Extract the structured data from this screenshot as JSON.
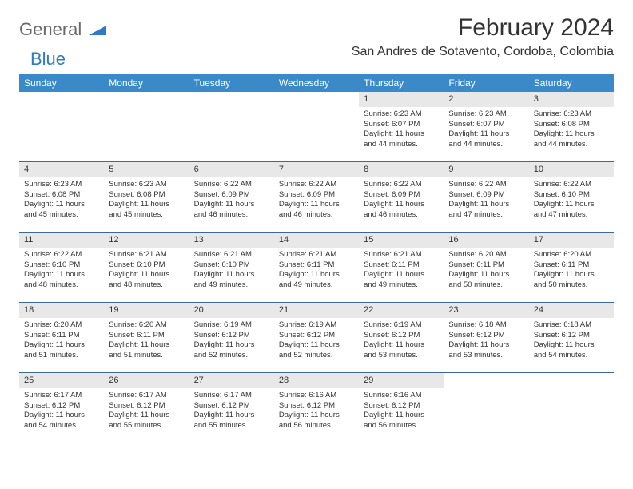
{
  "logo": {
    "part1": "General",
    "part2": "Blue"
  },
  "title": "February 2024",
  "location": "San Andres de Sotavento, Cordoba, Colombia",
  "header_bg": "#3a8ac9",
  "day_bg": "#e8e8e8",
  "border_color": "#3a6a9a",
  "weekdays": [
    "Sunday",
    "Monday",
    "Tuesday",
    "Wednesday",
    "Thursday",
    "Friday",
    "Saturday"
  ],
  "grid": [
    [
      null,
      null,
      null,
      null,
      {
        "d": "1",
        "sr": "Sunrise: 6:23 AM",
        "ss": "Sunset: 6:07 PM",
        "dl1": "Daylight: 11 hours",
        "dl2": "and 44 minutes."
      },
      {
        "d": "2",
        "sr": "Sunrise: 6:23 AM",
        "ss": "Sunset: 6:07 PM",
        "dl1": "Daylight: 11 hours",
        "dl2": "and 44 minutes."
      },
      {
        "d": "3",
        "sr": "Sunrise: 6:23 AM",
        "ss": "Sunset: 6:08 PM",
        "dl1": "Daylight: 11 hours",
        "dl2": "and 44 minutes."
      }
    ],
    [
      {
        "d": "4",
        "sr": "Sunrise: 6:23 AM",
        "ss": "Sunset: 6:08 PM",
        "dl1": "Daylight: 11 hours",
        "dl2": "and 45 minutes."
      },
      {
        "d": "5",
        "sr": "Sunrise: 6:23 AM",
        "ss": "Sunset: 6:08 PM",
        "dl1": "Daylight: 11 hours",
        "dl2": "and 45 minutes."
      },
      {
        "d": "6",
        "sr": "Sunrise: 6:22 AM",
        "ss": "Sunset: 6:09 PM",
        "dl1": "Daylight: 11 hours",
        "dl2": "and 46 minutes."
      },
      {
        "d": "7",
        "sr": "Sunrise: 6:22 AM",
        "ss": "Sunset: 6:09 PM",
        "dl1": "Daylight: 11 hours",
        "dl2": "and 46 minutes."
      },
      {
        "d": "8",
        "sr": "Sunrise: 6:22 AM",
        "ss": "Sunset: 6:09 PM",
        "dl1": "Daylight: 11 hours",
        "dl2": "and 46 minutes."
      },
      {
        "d": "9",
        "sr": "Sunrise: 6:22 AM",
        "ss": "Sunset: 6:09 PM",
        "dl1": "Daylight: 11 hours",
        "dl2": "and 47 minutes."
      },
      {
        "d": "10",
        "sr": "Sunrise: 6:22 AM",
        "ss": "Sunset: 6:10 PM",
        "dl1": "Daylight: 11 hours",
        "dl2": "and 47 minutes."
      }
    ],
    [
      {
        "d": "11",
        "sr": "Sunrise: 6:22 AM",
        "ss": "Sunset: 6:10 PM",
        "dl1": "Daylight: 11 hours",
        "dl2": "and 48 minutes."
      },
      {
        "d": "12",
        "sr": "Sunrise: 6:21 AM",
        "ss": "Sunset: 6:10 PM",
        "dl1": "Daylight: 11 hours",
        "dl2": "and 48 minutes."
      },
      {
        "d": "13",
        "sr": "Sunrise: 6:21 AM",
        "ss": "Sunset: 6:10 PM",
        "dl1": "Daylight: 11 hours",
        "dl2": "and 49 minutes."
      },
      {
        "d": "14",
        "sr": "Sunrise: 6:21 AM",
        "ss": "Sunset: 6:11 PM",
        "dl1": "Daylight: 11 hours",
        "dl2": "and 49 minutes."
      },
      {
        "d": "15",
        "sr": "Sunrise: 6:21 AM",
        "ss": "Sunset: 6:11 PM",
        "dl1": "Daylight: 11 hours",
        "dl2": "and 49 minutes."
      },
      {
        "d": "16",
        "sr": "Sunrise: 6:20 AM",
        "ss": "Sunset: 6:11 PM",
        "dl1": "Daylight: 11 hours",
        "dl2": "and 50 minutes."
      },
      {
        "d": "17",
        "sr": "Sunrise: 6:20 AM",
        "ss": "Sunset: 6:11 PM",
        "dl1": "Daylight: 11 hours",
        "dl2": "and 50 minutes."
      }
    ],
    [
      {
        "d": "18",
        "sr": "Sunrise: 6:20 AM",
        "ss": "Sunset: 6:11 PM",
        "dl1": "Daylight: 11 hours",
        "dl2": "and 51 minutes."
      },
      {
        "d": "19",
        "sr": "Sunrise: 6:20 AM",
        "ss": "Sunset: 6:11 PM",
        "dl1": "Daylight: 11 hours",
        "dl2": "and 51 minutes."
      },
      {
        "d": "20",
        "sr": "Sunrise: 6:19 AM",
        "ss": "Sunset: 6:12 PM",
        "dl1": "Daylight: 11 hours",
        "dl2": "and 52 minutes."
      },
      {
        "d": "21",
        "sr": "Sunrise: 6:19 AM",
        "ss": "Sunset: 6:12 PM",
        "dl1": "Daylight: 11 hours",
        "dl2": "and 52 minutes."
      },
      {
        "d": "22",
        "sr": "Sunrise: 6:19 AM",
        "ss": "Sunset: 6:12 PM",
        "dl1": "Daylight: 11 hours",
        "dl2": "and 53 minutes."
      },
      {
        "d": "23",
        "sr": "Sunrise: 6:18 AM",
        "ss": "Sunset: 6:12 PM",
        "dl1": "Daylight: 11 hours",
        "dl2": "and 53 minutes."
      },
      {
        "d": "24",
        "sr": "Sunrise: 6:18 AM",
        "ss": "Sunset: 6:12 PM",
        "dl1": "Daylight: 11 hours",
        "dl2": "and 54 minutes."
      }
    ],
    [
      {
        "d": "25",
        "sr": "Sunrise: 6:17 AM",
        "ss": "Sunset: 6:12 PM",
        "dl1": "Daylight: 11 hours",
        "dl2": "and 54 minutes."
      },
      {
        "d": "26",
        "sr": "Sunrise: 6:17 AM",
        "ss": "Sunset: 6:12 PM",
        "dl1": "Daylight: 11 hours",
        "dl2": "and 55 minutes."
      },
      {
        "d": "27",
        "sr": "Sunrise: 6:17 AM",
        "ss": "Sunset: 6:12 PM",
        "dl1": "Daylight: 11 hours",
        "dl2": "and 55 minutes."
      },
      {
        "d": "28",
        "sr": "Sunrise: 6:16 AM",
        "ss": "Sunset: 6:12 PM",
        "dl1": "Daylight: 11 hours",
        "dl2": "and 56 minutes."
      },
      {
        "d": "29",
        "sr": "Sunrise: 6:16 AM",
        "ss": "Sunset: 6:12 PM",
        "dl1": "Daylight: 11 hours",
        "dl2": "and 56 minutes."
      },
      null,
      null
    ]
  ]
}
